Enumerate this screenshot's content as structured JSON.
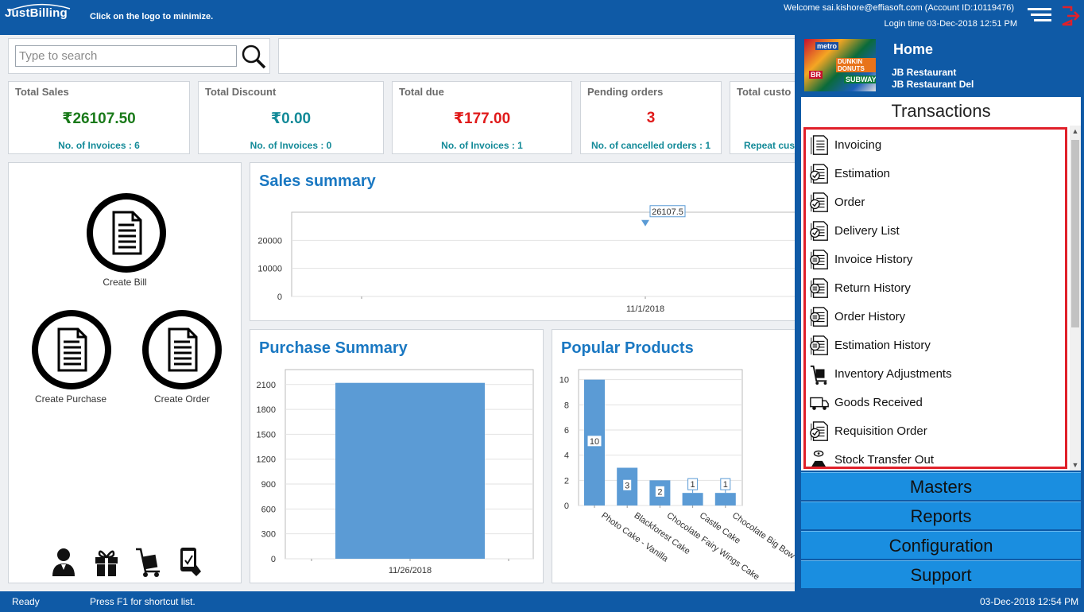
{
  "header": {
    "logo": "JustBilling",
    "hint": "Click on the logo to minimize.",
    "welcome": "Welcome sai.kishore@effiasoft.com (Account ID:10119476)",
    "login_time": "Login time  03-Dec-2018 12:51 PM"
  },
  "search": {
    "placeholder": "Type to search",
    "value": ""
  },
  "stats": [
    {
      "title": "Total Sales",
      "value": "₹26107.50",
      "sub": "No. of Invoices : 6",
      "color": "#1a7a1a"
    },
    {
      "title": "Total Discount",
      "value": "₹0.00",
      "sub": "No. of Invoices : 0",
      "color": "#138a98"
    },
    {
      "title": "Total due",
      "value": "₹177.00",
      "sub": "No. of Invoices : 1",
      "color": "#e01a1a"
    },
    {
      "title": "Pending orders",
      "value": "3",
      "sub": "No. of cancelled orders : 1",
      "color": "#e01a1a"
    },
    {
      "title": "Total custo",
      "value": "",
      "sub": "Repeat cus",
      "color": "#138a98"
    }
  ],
  "quick_actions": {
    "create_bill": "Create Bill",
    "create_purchase": "Create Purchase",
    "create_order": "Create Order"
  },
  "bottom_icons": [
    "customer-icon",
    "gift-icon",
    "inventory-trolley-icon",
    "payment-icon"
  ],
  "panels": {
    "sales_summary": "Sales summary",
    "purchase_summary": "Purchase Summary",
    "popular_products": "Popular Products"
  },
  "chart_data": [
    {
      "type": "line",
      "title": "Sales summary",
      "x": [
        "11/1/2018"
      ],
      "series": [
        {
          "values": [
            26107.5
          ]
        }
      ],
      "data_labels": [
        "26107.5"
      ],
      "y_ticks": [
        "0",
        "10000",
        "20000"
      ],
      "ylim": [
        0,
        30000
      ],
      "grid": true
    },
    {
      "type": "bar",
      "title": "Purchase Summary",
      "categories": [
        "11/26/2018"
      ],
      "values": [
        2120
      ],
      "y_ticks": [
        "0",
        "300",
        "600",
        "900",
        "1200",
        "1500",
        "1800",
        "2100"
      ],
      "ylim": [
        0,
        2280
      ],
      "grid": true
    },
    {
      "type": "bar",
      "title": "Popular Products",
      "categories": [
        "Photo Cake - Vanilla",
        "Blackforest Cake",
        "Chocolate Fairy Wings Cake",
        "Castle Cake",
        "Chocolate Big Bow C"
      ],
      "values": [
        10,
        3,
        2,
        1,
        1
      ],
      "data_labels": [
        "10",
        "3",
        "2",
        "1",
        "1"
      ],
      "y_ticks": [
        "0",
        "2",
        "4",
        "6",
        "8",
        "10"
      ],
      "ylim": [
        0,
        10.8
      ],
      "grid": true
    }
  ],
  "sidenav": {
    "home_title": "Home",
    "home_image_words": [
      "metro",
      "DUNKIN DONUTS",
      "SUBWAY",
      "BR"
    ],
    "restaurant_1": "JB Restaurant",
    "restaurant_2": "JB Restaurant Del",
    "transactions_header": "Transactions",
    "transactions": [
      {
        "label": "Invoicing",
        "icon": "invoice-icon"
      },
      {
        "label": "Estimation",
        "icon": "estimation-icon"
      },
      {
        "label": "Order",
        "icon": "order-icon"
      },
      {
        "label": "Delivery List",
        "icon": "delivery-list-icon"
      },
      {
        "label": "Invoice History",
        "icon": "invoice-history-icon"
      },
      {
        "label": "Return History",
        "icon": "return-history-icon"
      },
      {
        "label": "Order History",
        "icon": "order-history-icon"
      },
      {
        "label": "Estimation History",
        "icon": "estimation-history-icon"
      },
      {
        "label": "Inventory Adjustments",
        "icon": "inventory-adjustments-icon"
      },
      {
        "label": "Goods Received",
        "icon": "goods-received-icon"
      },
      {
        "label": "Requisition Order",
        "icon": "requisition-order-icon"
      },
      {
        "label": "Stock Transfer Out",
        "icon": "stock-transfer-out-icon"
      }
    ],
    "sections": [
      "Masters",
      "Reports",
      "Configuration",
      "Support"
    ]
  },
  "status": {
    "left": "Ready",
    "hint": "Press F1 for shortcut list.",
    "datetime": "03-Dec-2018 12:54 PM"
  },
  "colors": {
    "brand": "#0f5aa6",
    "accent": "#1a78c2",
    "bar": "#5b9bd5",
    "highlight": "#e0202a"
  }
}
